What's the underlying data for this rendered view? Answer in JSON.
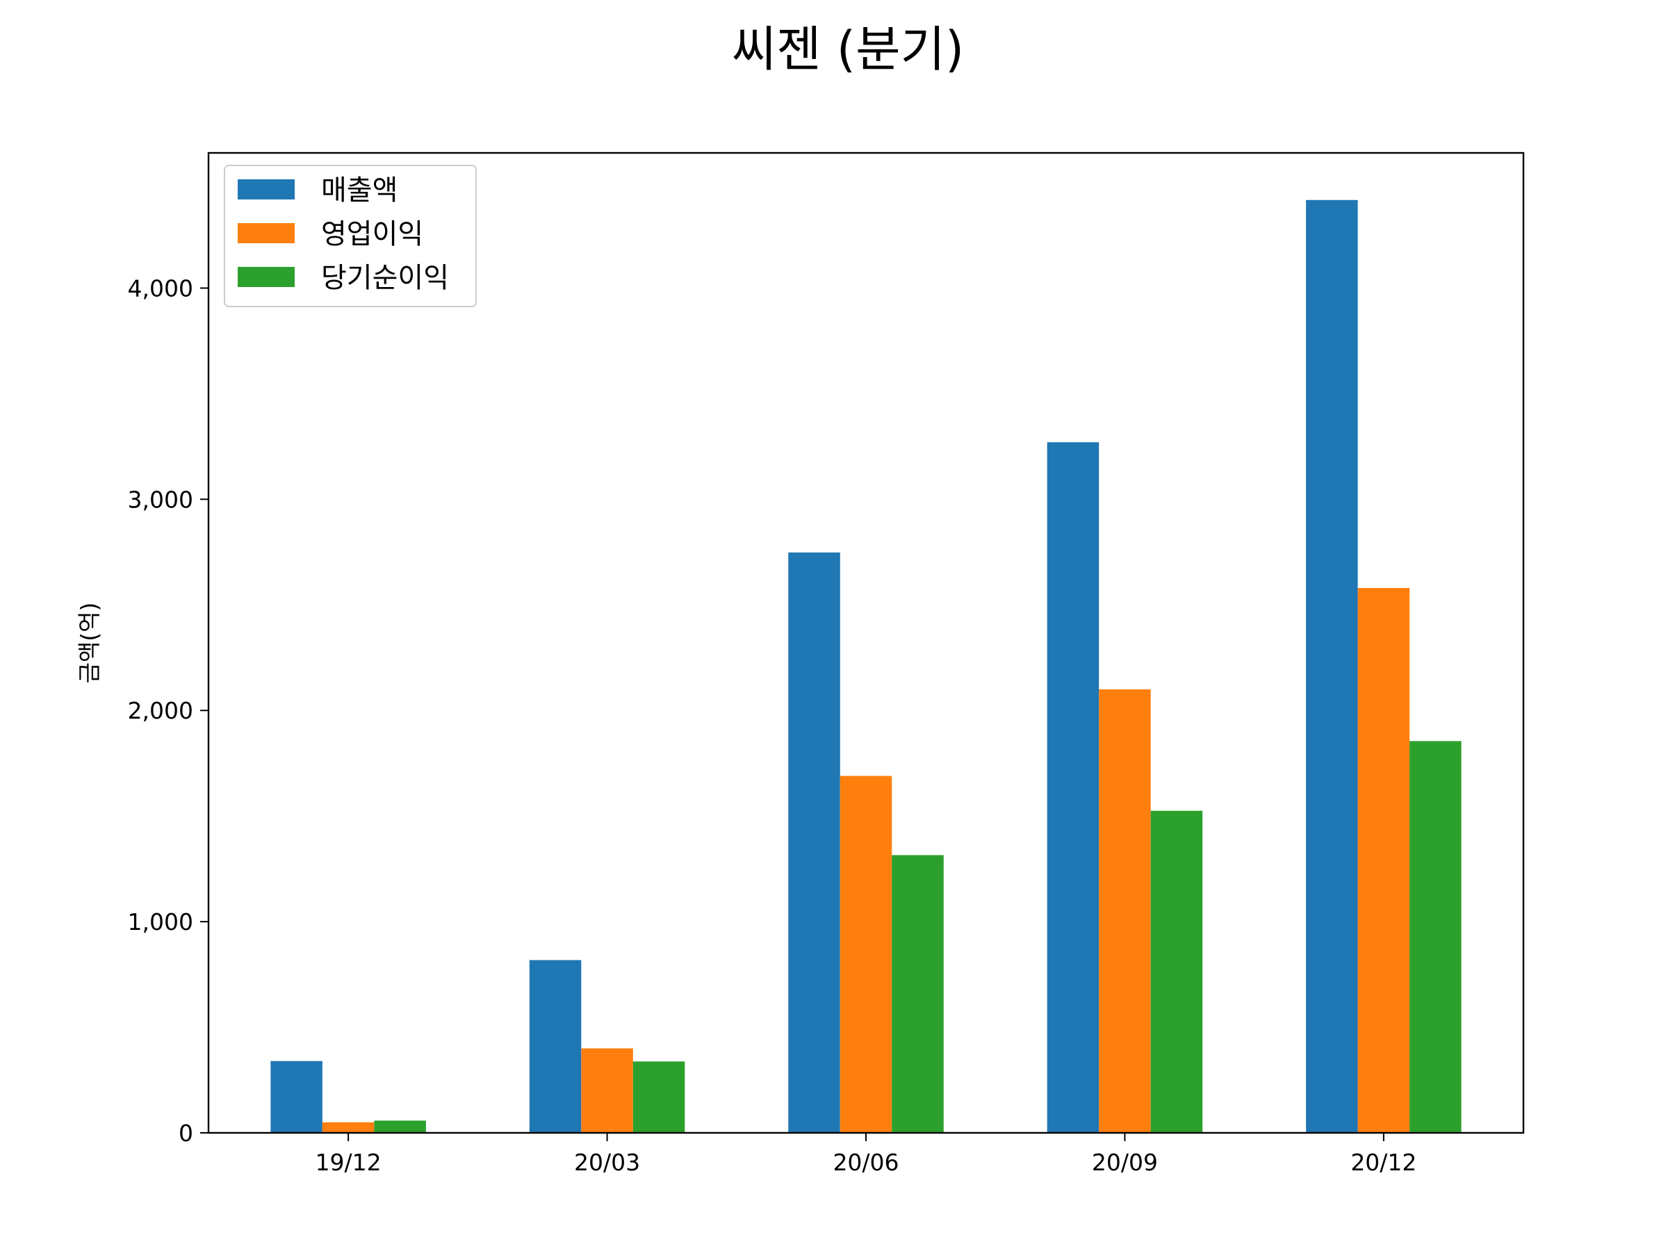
{
  "chart_data": {
    "type": "bar",
    "title": "씨젠 (분기)",
    "xlabel": "",
    "ylabel": "금액(억)",
    "categories": [
      "19/12",
      "20/03",
      "20/06",
      "20/09",
      "20/12"
    ],
    "series": [
      {
        "name": "매출액",
        "color": "#1f77b4",
        "values": [
          340,
          818,
          2748,
          3270,
          4417
        ]
      },
      {
        "name": "영업이익",
        "color": "#ff7f0e",
        "values": [
          50,
          400,
          1690,
          2100,
          2580
        ]
      },
      {
        "name": "당기순이익",
        "color": "#2ca02c",
        "values": [
          58,
          338,
          1315,
          1525,
          1855
        ]
      }
    ],
    "ylim": [
      0,
      4640
    ],
    "yticks": [
      0,
      1000,
      2000,
      3000,
      4000
    ],
    "ytick_labels": [
      "0",
      "1,000",
      "2,000",
      "3,000",
      "4,000"
    ],
    "grid": false,
    "legend_position": "upper-left"
  }
}
